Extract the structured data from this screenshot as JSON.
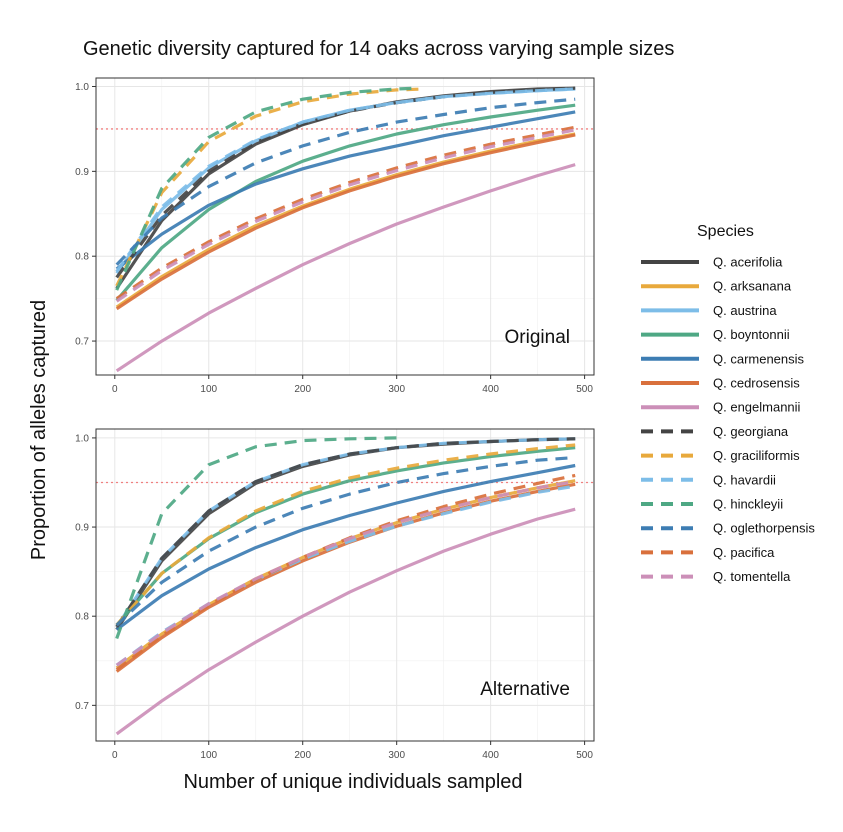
{
  "title": "Genetic diversity captured for 14 oaks across varying sample sizes",
  "ylabel": "Proportion of alleles captured",
  "xlabel": "Number of unique individuals sampled",
  "legend": {
    "title": "Species",
    "items": [
      {
        "name": "Q. acerifolia",
        "color": "#444444",
        "dash": "solid"
      },
      {
        "name": "Q. arksanana",
        "color": "#E8A93C",
        "dash": "solid"
      },
      {
        "name": "Q. austrina",
        "color": "#7DBDE8",
        "dash": "solid"
      },
      {
        "name": "Q. boyntonnii",
        "color": "#4EA884",
        "dash": "solid"
      },
      {
        "name": "Q. carmenensis",
        "color": "#3D7DB3",
        "dash": "solid"
      },
      {
        "name": "Q. cedrosensis",
        "color": "#D9703C",
        "dash": "solid"
      },
      {
        "name": "Q. engelmannii",
        "color": "#CC8FB8",
        "dash": "solid"
      },
      {
        "name": "Q. georgiana",
        "color": "#444444",
        "dash": "dashed"
      },
      {
        "name": "Q. graciliformis",
        "color": "#E8A93C",
        "dash": "dashed"
      },
      {
        "name": "Q. havardii",
        "color": "#7DBDE8",
        "dash": "dashed"
      },
      {
        "name": "Q. hinckleyii",
        "color": "#4EA884",
        "dash": "dashed"
      },
      {
        "name": "Q. oglethorpensis",
        "color": "#3D7DB3",
        "dash": "dashed"
      },
      {
        "name": "Q. pacifica",
        "color": "#D9703C",
        "dash": "dashed"
      },
      {
        "name": "Q. tomentella",
        "color": "#CC8FB8",
        "dash": "dashed"
      }
    ]
  },
  "chart_data": [
    {
      "type": "line",
      "panel_label": "Original",
      "xlim": [
        -20,
        510
      ],
      "ylim": [
        0.66,
        1.01
      ],
      "xticks": [
        0,
        100,
        200,
        300,
        400,
        500
      ],
      "yticks": [
        0.7,
        0.8,
        0.9,
        1.0
      ],
      "ytick_labels": [
        "0.7",
        "0.8",
        "0.9",
        "1.0"
      ],
      "threshold": 0.95,
      "grid": true,
      "series": [
        {
          "name": "Q. acerifolia",
          "x": [
            2,
            50,
            100,
            150,
            200,
            250,
            300,
            350,
            400,
            450,
            490
          ],
          "y": [
            0.762,
            0.842,
            0.897,
            0.932,
            0.955,
            0.971,
            0.982,
            0.989,
            0.994,
            0.997,
            0.998
          ]
        },
        {
          "name": "Q. arksanana",
          "x": [
            2,
            50,
            100,
            150,
            200,
            250,
            300,
            350,
            400,
            450,
            490
          ],
          "y": [
            0.74,
            0.776,
            0.808,
            0.836,
            0.859,
            0.879,
            0.896,
            0.911,
            0.924,
            0.936,
            0.944
          ]
        },
        {
          "name": "Q. austrina",
          "x": [
            2,
            50,
            100,
            150,
            200,
            250,
            300,
            350,
            400,
            450,
            490
          ],
          "y": [
            0.78,
            0.855,
            0.904,
            0.936,
            0.958,
            0.972,
            0.981,
            0.988,
            0.992,
            0.995,
            0.997
          ]
        },
        {
          "name": "Q. boyntonnii",
          "x": [
            2,
            50,
            100,
            150,
            200,
            250,
            300,
            350,
            400,
            450,
            490
          ],
          "y": [
            0.748,
            0.81,
            0.855,
            0.888,
            0.912,
            0.93,
            0.944,
            0.955,
            0.964,
            0.972,
            0.978
          ]
        },
        {
          "name": "Q. carmenensis",
          "x": [
            2,
            50,
            100,
            150,
            200,
            250,
            300,
            350,
            400,
            450,
            490
          ],
          "y": [
            0.785,
            0.826,
            0.86,
            0.885,
            0.903,
            0.918,
            0.93,
            0.942,
            0.952,
            0.962,
            0.97
          ]
        },
        {
          "name": "Q. cedrosensis",
          "x": [
            2,
            50,
            100,
            150,
            200,
            250,
            300,
            350,
            400,
            450,
            490
          ],
          "y": [
            0.738,
            0.773,
            0.805,
            0.833,
            0.857,
            0.877,
            0.894,
            0.909,
            0.922,
            0.934,
            0.943
          ]
        },
        {
          "name": "Q. engelmannii",
          "x": [
            2,
            50,
            100,
            150,
            200,
            250,
            300,
            350,
            400,
            450,
            490
          ],
          "y": [
            0.665,
            0.7,
            0.733,
            0.762,
            0.79,
            0.815,
            0.838,
            0.858,
            0.877,
            0.895,
            0.908
          ]
        },
        {
          "name": "Q. georgiana",
          "x": [
            2,
            50,
            100,
            150,
            200,
            250,
            300,
            350,
            400,
            450,
            490
          ],
          "y": [
            0.775,
            0.848,
            0.9,
            0.934,
            0.956,
            0.971,
            0.981,
            0.988,
            0.993,
            0.996,
            0.998
          ]
        },
        {
          "name": "Q. graciliformis",
          "x": [
            2,
            50,
            100,
            150,
            200,
            250,
            300,
            330
          ],
          "y": [
            0.765,
            0.875,
            0.935,
            0.965,
            0.982,
            0.991,
            0.996,
            0.997
          ]
        },
        {
          "name": "Q. havardii",
          "x": [
            2,
            50,
            100,
            150,
            200,
            250,
            300,
            350,
            400,
            450,
            490
          ],
          "y": [
            0.782,
            0.858,
            0.906,
            0.937,
            0.958,
            0.972,
            0.981,
            0.988,
            0.992,
            0.995,
            0.997
          ]
        },
        {
          "name": "Q. hinckleyii",
          "x": [
            2,
            50,
            100,
            150,
            200,
            250,
            300,
            320
          ],
          "y": [
            0.76,
            0.88,
            0.94,
            0.97,
            0.985,
            0.993,
            0.997,
            0.998
          ]
        },
        {
          "name": "Q. oglethorpensis",
          "x": [
            2,
            50,
            100,
            150,
            200,
            250,
            300,
            350,
            400,
            450,
            490
          ],
          "y": [
            0.79,
            0.845,
            0.882,
            0.91,
            0.93,
            0.946,
            0.958,
            0.967,
            0.975,
            0.981,
            0.985
          ]
        },
        {
          "name": "Q. pacifica",
          "x": [
            2,
            50,
            100,
            150,
            200,
            250,
            300,
            350,
            400,
            450,
            490
          ],
          "y": [
            0.75,
            0.786,
            0.817,
            0.844,
            0.867,
            0.887,
            0.904,
            0.919,
            0.932,
            0.943,
            0.952
          ]
        },
        {
          "name": "Q. tomentella",
          "x": [
            2,
            50,
            100,
            150,
            200,
            250,
            300,
            350,
            400,
            450,
            490
          ],
          "y": [
            0.747,
            0.783,
            0.814,
            0.841,
            0.864,
            0.884,
            0.901,
            0.916,
            0.929,
            0.94,
            0.949
          ]
        }
      ]
    },
    {
      "type": "line",
      "panel_label": "Alternative",
      "xlim": [
        -20,
        510
      ],
      "ylim": [
        0.66,
        1.01
      ],
      "xticks": [
        0,
        100,
        200,
        300,
        400,
        500
      ],
      "yticks": [
        0.7,
        0.8,
        0.9,
        1.0
      ],
      "ytick_labels": [
        "0.7",
        "0.8",
        "0.9",
        "1.0"
      ],
      "threshold": 0.95,
      "grid": true,
      "series": [
        {
          "name": "Q. acerifolia",
          "x": [
            2,
            50,
            100,
            150,
            200,
            250,
            300,
            350,
            400,
            450,
            490
          ],
          "y": [
            0.785,
            0.862,
            0.915,
            0.949,
            0.968,
            0.981,
            0.989,
            0.993,
            0.996,
            0.998,
            0.999
          ]
        },
        {
          "name": "Q. arksanana",
          "x": [
            2,
            50,
            100,
            150,
            200,
            250,
            300,
            350,
            400,
            450,
            490
          ],
          "y": [
            0.742,
            0.78,
            0.813,
            0.842,
            0.866,
            0.887,
            0.905,
            0.92,
            0.933,
            0.944,
            0.952
          ]
        },
        {
          "name": "Q. austrina",
          "x": [
            2,
            50,
            100,
            150,
            200,
            250,
            300,
            350,
            400,
            450,
            490
          ],
          "y": [
            0.788,
            0.865,
            0.918,
            0.951,
            0.97,
            0.982,
            0.989,
            0.994,
            0.996,
            0.998,
            0.999
          ]
        },
        {
          "name": "Q. boyntonnii",
          "x": [
            2,
            50,
            100,
            150,
            200,
            250,
            300,
            350,
            400,
            450,
            490
          ],
          "y": [
            0.79,
            0.848,
            0.887,
            0.916,
            0.937,
            0.952,
            0.963,
            0.972,
            0.979,
            0.985,
            0.989
          ]
        },
        {
          "name": "Q. carmenensis",
          "x": [
            2,
            50,
            100,
            150,
            200,
            250,
            300,
            350,
            400,
            450,
            490
          ],
          "y": [
            0.785,
            0.823,
            0.853,
            0.877,
            0.897,
            0.913,
            0.927,
            0.94,
            0.951,
            0.961,
            0.969
          ]
        },
        {
          "name": "Q. cedrosensis",
          "x": [
            2,
            50,
            100,
            150,
            200,
            250,
            300,
            350,
            400,
            450,
            490
          ],
          "y": [
            0.738,
            0.776,
            0.81,
            0.838,
            0.862,
            0.883,
            0.901,
            0.916,
            0.929,
            0.94,
            0.948
          ]
        },
        {
          "name": "Q. engelmannii",
          "x": [
            2,
            50,
            100,
            150,
            200,
            250,
            300,
            350,
            400,
            450,
            490
          ],
          "y": [
            0.668,
            0.705,
            0.74,
            0.771,
            0.8,
            0.827,
            0.851,
            0.873,
            0.892,
            0.909,
            0.92
          ]
        },
        {
          "name": "Q. georgiana",
          "x": [
            2,
            50,
            100,
            150,
            200,
            250,
            300,
            350,
            400,
            450,
            490
          ],
          "y": [
            0.788,
            0.865,
            0.918,
            0.951,
            0.97,
            0.982,
            0.989,
            0.994,
            0.996,
            0.998,
            0.999
          ]
        },
        {
          "name": "Q. graciliformis",
          "x": [
            2,
            50,
            100,
            150,
            200,
            250,
            300,
            350,
            400,
            450,
            490
          ],
          "y": [
            0.79,
            0.848,
            0.888,
            0.918,
            0.94,
            0.955,
            0.966,
            0.975,
            0.982,
            0.988,
            0.992
          ]
        },
        {
          "name": "Q. havardii",
          "x": [
            2,
            50,
            100,
            150,
            200,
            250,
            300,
            350,
            400,
            450,
            490
          ],
          "y": [
            0.745,
            0.782,
            0.814,
            0.841,
            0.864,
            0.884,
            0.901,
            0.915,
            0.928,
            0.939,
            0.946
          ]
        },
        {
          "name": "Q. hinckleyii",
          "x": [
            2,
            50,
            100,
            150,
            200,
            250,
            300
          ],
          "y": [
            0.775,
            0.915,
            0.97,
            0.99,
            0.997,
            0.999,
            1.0
          ]
        },
        {
          "name": "Q. oglethorpensis",
          "x": [
            2,
            50,
            100,
            150,
            200,
            250,
            300,
            350,
            400,
            450,
            490
          ],
          "y": [
            0.79,
            0.838,
            0.873,
            0.9,
            0.921,
            0.937,
            0.95,
            0.96,
            0.968,
            0.975,
            0.978
          ]
        },
        {
          "name": "Q. pacifica",
          "x": [
            2,
            50,
            100,
            150,
            200,
            250,
            300,
            350,
            400,
            450,
            490
          ],
          "y": [
            0.74,
            0.778,
            0.812,
            0.841,
            0.866,
            0.888,
            0.907,
            0.923,
            0.937,
            0.949,
            0.958
          ]
        },
        {
          "name": "Q. tomentella",
          "x": [
            2,
            50,
            100,
            150,
            200,
            250,
            300,
            350,
            400,
            450,
            490
          ],
          "y": [
            0.745,
            0.781,
            0.814,
            0.842,
            0.866,
            0.887,
            0.905,
            0.92,
            0.933,
            0.944,
            0.951
          ]
        }
      ]
    }
  ]
}
